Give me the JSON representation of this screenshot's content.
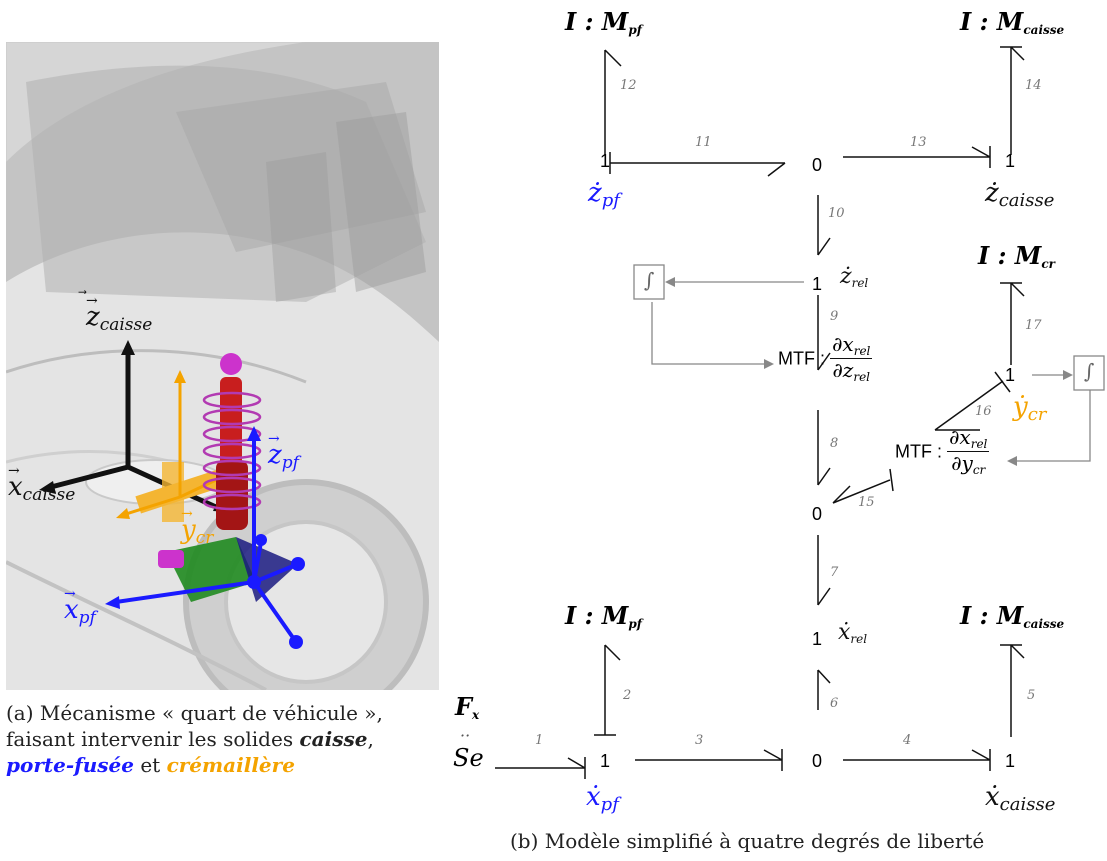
{
  "panel_a": {
    "caption_line1": "(a) Mécanisme « quart de véhicule »,",
    "caption_line2": "faisant intervenir les solides",
    "caption_caisse": "caisse",
    "caption_comma": ",",
    "caption_portefusee": "porte-fusée",
    "caption_et": "et",
    "caption_cremaillere": "crémaillère",
    "axes": {
      "z_caisse": "z",
      "z_caisse_sub": "caisse",
      "x_caisse": "x",
      "x_caisse_sub": "caisse",
      "z_pf": "z",
      "z_pf_sub": "pf",
      "y_cr": "y",
      "y_cr_sub": "cr",
      "x_pf": "x",
      "x_pf_sub": "pf"
    }
  },
  "panel_b": {
    "caption": "(b) Modèle simplifié à quatre degrés de liberté",
    "junctions": {
      "one": "1",
      "zero": "0"
    },
    "inertia_prefix": "I : M",
    "inertia_pf_sub": "pf",
    "inertia_caisse_sub": "caisse",
    "inertia_cr_sub": "cr",
    "mtf_prefix": "MTF :",
    "mtf1_num": "∂x",
    "mtf1_num_sub": "rel",
    "mtf1_den": "∂z",
    "mtf1_den_sub": "rel",
    "mtf2_num": "∂x",
    "mtf2_num_sub": "rel",
    "mtf2_den": "∂y",
    "mtf2_den_sub": "cr",
    "integrator_symbol": "∫",
    "source_F": "F",
    "source_F_sub": "x",
    "source_Se": "Se",
    "source_dots": "··",
    "flows": {
      "z_pf": "ż",
      "z_pf_sub": "pf",
      "z_caisse": "ż",
      "z_caisse_sub": "caisse",
      "z_rel": "ż",
      "z_rel_sub": "rel",
      "y_cr": "ẏ",
      "y_cr_sub": "cr",
      "x_rel": "ẋ",
      "x_rel_sub": "rel",
      "x_pf": "ẋ",
      "x_pf_sub": "pf",
      "x_caisse": "ẋ",
      "x_caisse_sub": "caisse"
    },
    "bond_numbers": [
      "1",
      "2",
      "3",
      "4",
      "5",
      "6",
      "7",
      "8",
      "9",
      "10",
      "11",
      "12",
      "13",
      "14",
      "15",
      "16",
      "17"
    ]
  },
  "colors": {
    "blue": "#1a1aff",
    "orange": "#f4a300",
    "magenta": "#cc33cc",
    "red": "#cc2222",
    "green": "#1f8a1f",
    "grey_arrow": "#888888"
  }
}
